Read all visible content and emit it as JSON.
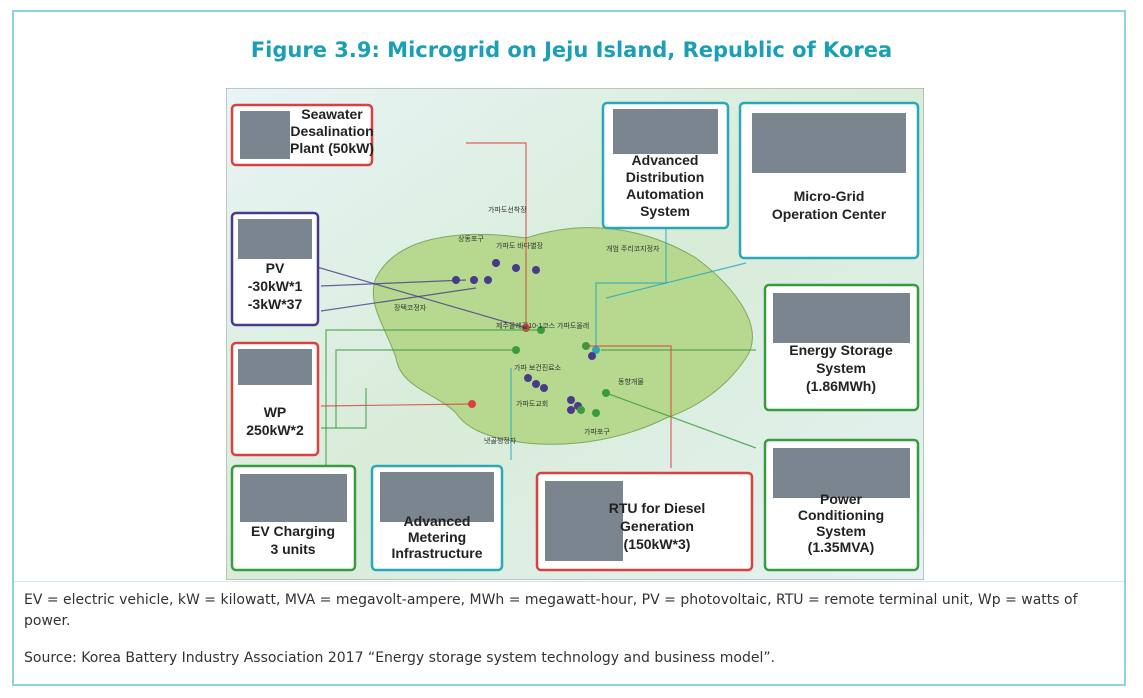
{
  "header": {
    "title": "Figure 3.9: Microgrid on Jeju Island, Republic of Korea"
  },
  "diagram": {
    "boxes": [
      {
        "lines": [
          "Seawater",
          "Desalination",
          "Plant (50kW)"
        ]
      },
      {
        "lines": [
          "Advanced",
          "Distribution",
          "Automation",
          "System"
        ]
      },
      {
        "lines": [
          "Micro-Grid",
          "Operation Center"
        ]
      },
      {
        "lines": [
          "PV",
          "-30kW*1",
          "-3kW*37"
        ]
      },
      {
        "lines": [
          "Energy Storage",
          "System",
          "(1.86MWh)"
        ]
      },
      {
        "lines": [
          "WP",
          "250kW*2"
        ]
      },
      {
        "lines": [
          "EV Charging",
          "3 units"
        ]
      },
      {
        "lines": [
          "Advanced",
          "Metering",
          "Infrastructure"
        ]
      },
      {
        "lines": [
          "RTU for Diesel",
          "Generation",
          "(150kW*3)"
        ]
      },
      {
        "lines": [
          "Power",
          "Conditioning",
          "System",
          "(1.35MVA)"
        ]
      }
    ],
    "places": [
      "가파도선착장",
      "상동포구",
      "가파도 바다별장",
      "개엄 주리코지정자",
      "장택코정자",
      "제주올레길10-1코스 가파도올레",
      "가파 보건진료소",
      "동향개물",
      "가파도교회",
      "가파포구",
      "냇골챙정자"
    ]
  },
  "notes": {
    "abbreviations": "EV = electric vehicle, kW = kilowatt, MVA = megavolt-ampere, MWh = megawatt-hour, PV = photovoltaic, RTU = remote terminal unit, Wp = watts of power.",
    "source": "Source: Korea Battery Industry Association 2017 “Energy storage system technology and business model”."
  }
}
